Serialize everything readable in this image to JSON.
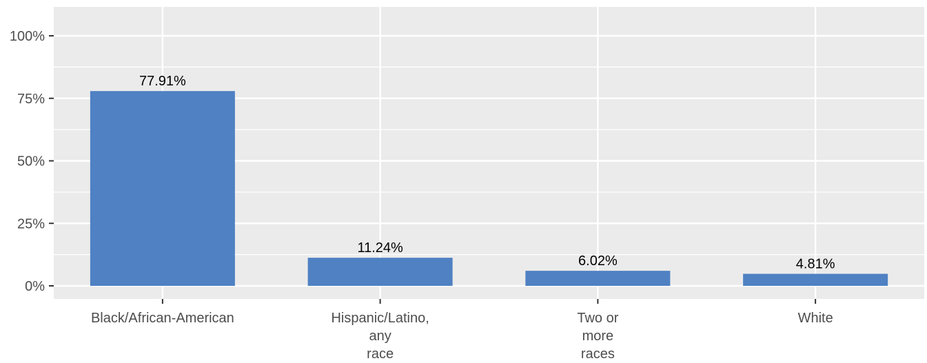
{
  "chart_data": {
    "type": "bar",
    "title": "",
    "xlabel": "",
    "ylabel": "",
    "categories": [
      [
        "Black/African-American"
      ],
      [
        "Hispanic/Latino,",
        "any",
        "race"
      ],
      [
        "Two or",
        "more",
        "races"
      ],
      [
        "White"
      ]
    ],
    "values": [
      77.91,
      11.24,
      6.02,
      4.81
    ],
    "data_labels": [
      "77.91%",
      "11.24%",
      "6.02%",
      "4.81%"
    ],
    "ylim": [
      0,
      100
    ],
    "yticks": [
      0,
      25,
      50,
      75,
      100
    ],
    "ytick_labels": [
      "0%",
      "25%",
      "50%",
      "75%",
      "100%"
    ],
    "grid": true,
    "legend": "none",
    "colors": {
      "bar": "#4f81c3",
      "panel_background": "#ebebeb",
      "grid": "#ffffff",
      "axis_text": "#4d4d4d",
      "data_label": "#000000"
    }
  }
}
